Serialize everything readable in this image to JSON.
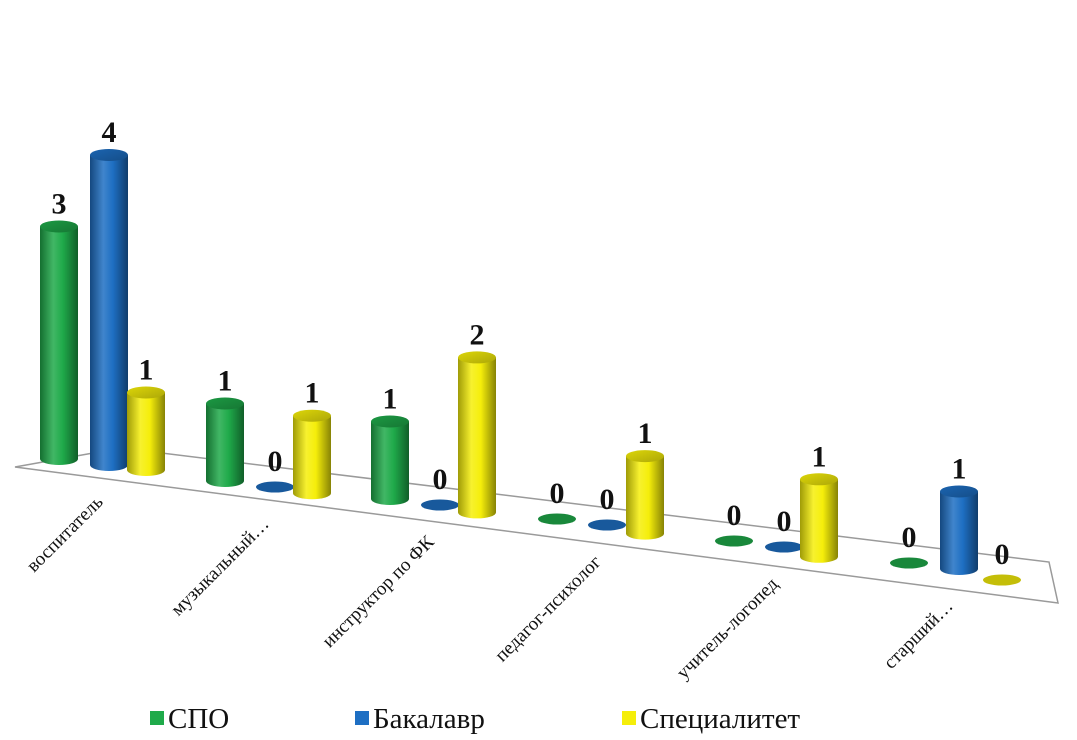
{
  "chart_data": {
    "type": "bar",
    "title": "",
    "xlabel": "",
    "ylabel": "",
    "ylim": [
      0,
      4
    ],
    "grid": false,
    "legend_position": "bottom",
    "categories": [
      "воспитатель",
      "музыкальный…",
      "инструктор по ФК",
      "педагог-психолог",
      "учитель-логопед",
      "старший…"
    ],
    "series": [
      {
        "name": "СПО",
        "color": "#1faa4a",
        "values": [
          3,
          1,
          1,
          0,
          0,
          0
        ]
      },
      {
        "name": "Бакалавр",
        "color": "#1e6fc3",
        "values": [
          4,
          0,
          0,
          0,
          0,
          1
        ]
      },
      {
        "name": "Специалитет",
        "color": "#f5ee0a",
        "values": [
          1,
          1,
          2,
          1,
          1,
          0
        ]
      }
    ]
  }
}
